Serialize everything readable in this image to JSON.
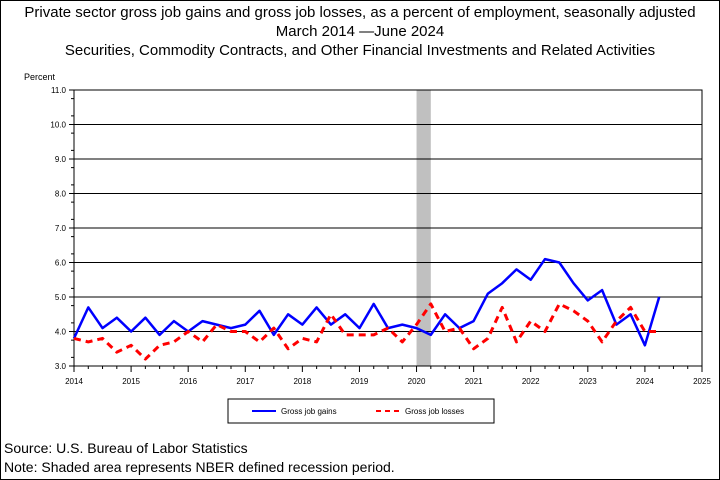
{
  "title": "Private sector gross job gains and gross job losses, as a percent of employment, seasonally adjusted",
  "subtitle": "March 2014 —June 2024",
  "series_title": "Securities, Commodity Contracts, and Other Financial Investments and Related Activities",
  "source": "Source: U.S. Bureau of Labor Statistics",
  "note": "Note: Shaded area represents NBER defined recession period.",
  "colors": {
    "gains": "#0000ff",
    "losses": "#ff0000",
    "recession": "#c0c0c0"
  },
  "chart_data": {
    "type": "line",
    "ylabel": "Percent",
    "xlabel": "",
    "ylim": [
      3.0,
      11.0
    ],
    "xlim": [
      2014,
      2025
    ],
    "yticks": [
      "3.0",
      "4.0",
      "5.0",
      "6.0",
      "7.0",
      "8.0",
      "9.0",
      "10.0",
      "11.0"
    ],
    "xticks": [
      "2014",
      "2015",
      "2016",
      "2017",
      "2018",
      "2019",
      "2020",
      "2021",
      "2022",
      "2023",
      "2024",
      "2025"
    ],
    "grid": "horizontal",
    "legend": "bottom-center",
    "recession": {
      "start": 2020.0,
      "end": 2020.25
    },
    "x": [
      2014.0,
      2014.25,
      2014.5,
      2014.75,
      2015.0,
      2015.25,
      2015.5,
      2015.75,
      2016.0,
      2016.25,
      2016.5,
      2016.75,
      2017.0,
      2017.25,
      2017.5,
      2017.75,
      2018.0,
      2018.25,
      2018.5,
      2018.75,
      2019.0,
      2019.25,
      2019.5,
      2019.75,
      2020.0,
      2020.25,
      2020.5,
      2020.75,
      2021.0,
      2021.25,
      2021.5,
      2021.75,
      2022.0,
      2022.25,
      2022.5,
      2022.75,
      2023.0,
      2023.25,
      2023.5,
      2023.75,
      2024.0,
      2024.25
    ],
    "series": [
      {
        "name": "Gross job gains",
        "style": "solid",
        "values": [
          3.8,
          4.7,
          4.1,
          4.4,
          4.0,
          4.4,
          3.9,
          4.3,
          4.0,
          4.3,
          4.2,
          4.1,
          4.2,
          4.6,
          3.9,
          4.5,
          4.2,
          4.7,
          4.2,
          4.5,
          4.1,
          4.8,
          4.1,
          4.2,
          4.1,
          3.9,
          4.5,
          4.1,
          4.3,
          5.1,
          5.4,
          5.8,
          5.5,
          6.1,
          6.0,
          5.4,
          4.9,
          5.2,
          4.2,
          4.5,
          3.6,
          5.0
        ]
      },
      {
        "name": "Gross job losses",
        "style": "dashed",
        "values": [
          3.8,
          3.7,
          3.8,
          3.4,
          3.6,
          3.2,
          3.6,
          3.7,
          4.0,
          3.7,
          4.2,
          4.0,
          4.0,
          3.7,
          4.1,
          3.5,
          3.8,
          3.7,
          4.5,
          3.9,
          3.9,
          3.9,
          4.1,
          3.7,
          4.2,
          4.8,
          4.0,
          4.1,
          3.5,
          3.8,
          4.7,
          3.7,
          4.3,
          4.0,
          4.8,
          4.6,
          4.3,
          3.7,
          4.3,
          4.7,
          4.0,
          4.0
        ]
      }
    ]
  }
}
